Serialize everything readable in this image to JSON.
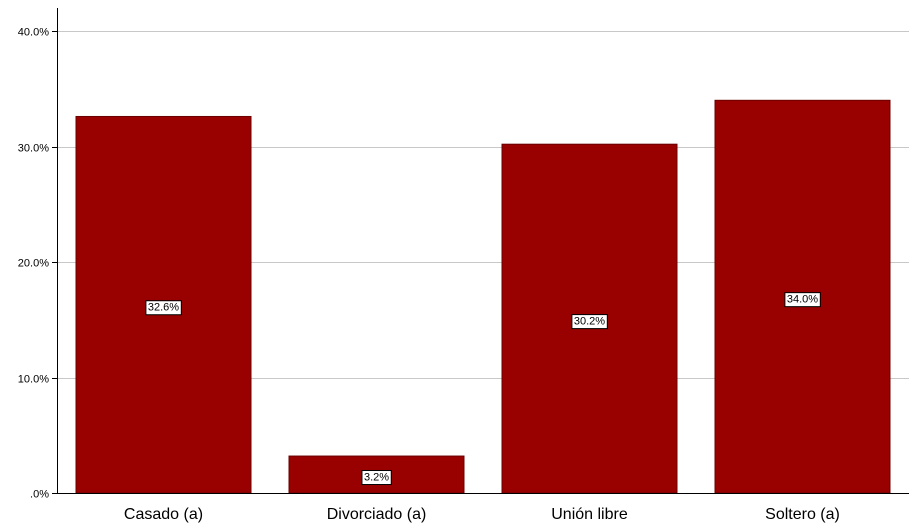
{
  "chart_data": {
    "type": "bar",
    "categories": [
      "Casado (a)",
      "Divorciado (a)",
      "Unión libre",
      "Soltero (a)"
    ],
    "values": [
      32.6,
      3.2,
      30.2,
      34.0
    ],
    "data_labels": [
      "32.6%",
      "3.2%",
      "30.2%",
      "34.0%"
    ],
    "y_ticks": [
      0,
      10,
      20,
      30,
      40
    ],
    "y_tick_labels": [
      ".0%",
      "10.0%",
      "20.0%",
      "30.0%",
      "40.0%"
    ],
    "ylim": [
      0,
      40
    ],
    "title": "",
    "xlabel": "",
    "ylabel": "",
    "grid": "horizontal",
    "legend": "none",
    "colors": {
      "bar": "#990000",
      "bar_stroke": "#6b0000",
      "grid": "#c8c8c8",
      "axis": "#000000"
    }
  }
}
